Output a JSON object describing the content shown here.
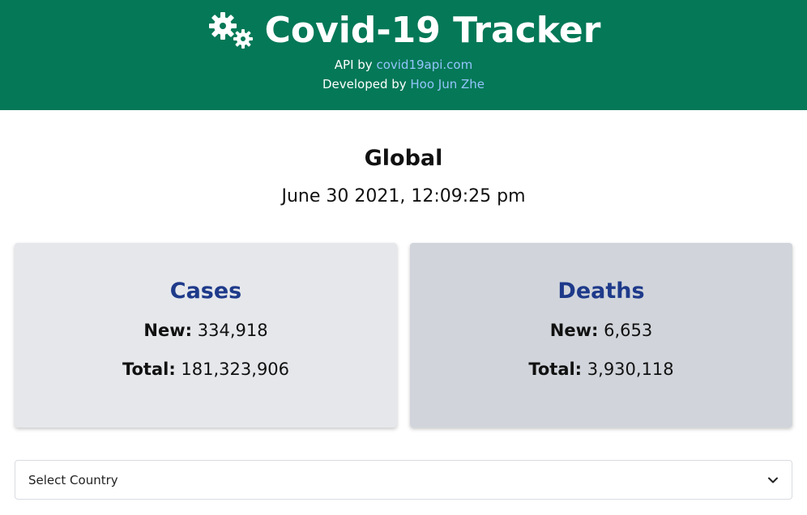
{
  "header": {
    "title": "Covid-19 Tracker",
    "api_prefix": "API by ",
    "api_link": "covid19api.com",
    "dev_prefix": "Developed by ",
    "dev_link": "Hoo Jun Zhe",
    "bg_color": "#047857",
    "link_color": "#93c5fd",
    "logo_icon": "virus-gears-icon"
  },
  "summary": {
    "region": "Global",
    "timestamp": "June 30 2021, 12:09:25 pm"
  },
  "cards": {
    "cases": {
      "title": "Cases",
      "new_label": "New:",
      "new_value": "334,918",
      "total_label": "Total:",
      "total_value": "181,323,906"
    },
    "deaths": {
      "title": "Deaths",
      "new_label": "New:",
      "new_value": "6,653",
      "total_label": "Total:",
      "total_value": "3,930,118"
    },
    "title_color": "#1e3a8a"
  },
  "country_select": {
    "selected": "Select Country"
  }
}
